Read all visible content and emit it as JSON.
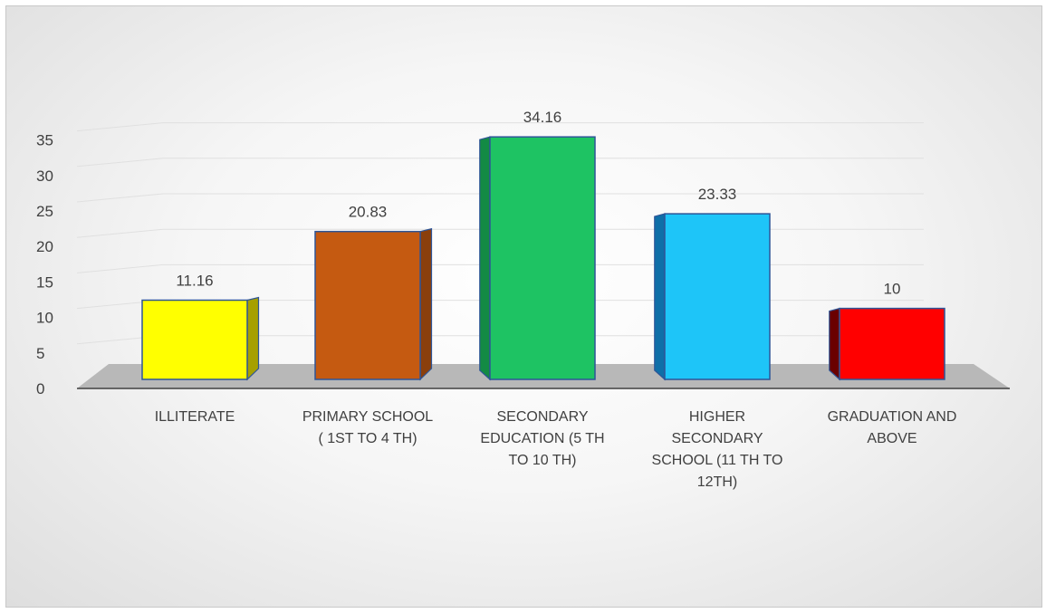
{
  "chart_data": {
    "type": "bar",
    "title": "",
    "xlabel": "",
    "ylabel": "",
    "ylim": [
      0,
      35
    ],
    "yticks": [
      0,
      5,
      10,
      15,
      20,
      25,
      30,
      35
    ],
    "grid": true,
    "categories": [
      [
        "ILLITERATE"
      ],
      [
        "PRIMARY SCHOOL",
        "( 1ST TO 4 TH)"
      ],
      [
        "SECONDARY",
        "EDUCATION (5 TH",
        "TO 10 TH)"
      ],
      [
        "HIGHER",
        "SECONDARY",
        "SCHOOL (11 TH TO",
        "12TH)"
      ],
      [
        "GRADUATION AND",
        "ABOVE"
      ]
    ],
    "values": [
      11.16,
      20.83,
      34.16,
      23.33,
      10
    ],
    "value_labels": [
      "11.16",
      "20.83",
      "34.16",
      "23.33",
      "10"
    ],
    "colors": [
      "#ffff00",
      "#c55a11",
      "#1ec363",
      "#1ec5f8",
      "#ff0000"
    ],
    "side_colors": [
      "#a6a000",
      "#8a3f0c",
      "#138a44",
      "#0f6fa8",
      "#6a0000"
    ]
  }
}
